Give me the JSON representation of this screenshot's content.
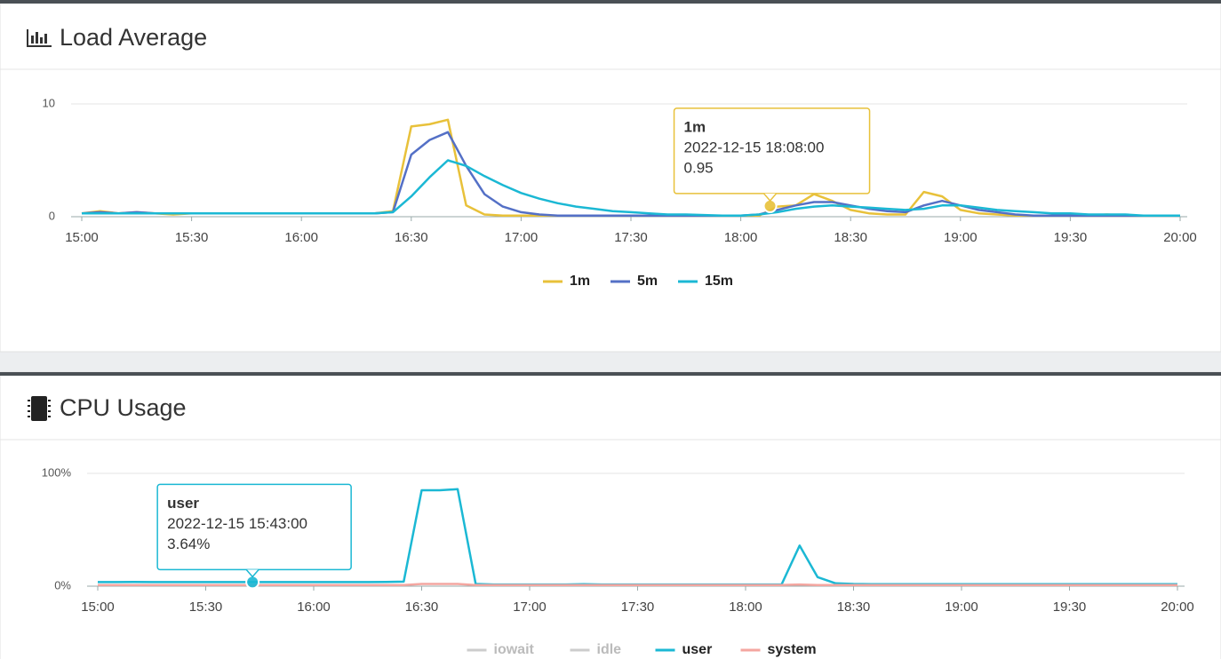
{
  "chart_data": [
    {
      "type": "line",
      "title": "Load Average",
      "x": [
        "15:00",
        "15:05",
        "15:10",
        "15:15",
        "15:20",
        "15:25",
        "15:30",
        "15:35",
        "15:40",
        "15:45",
        "15:50",
        "15:55",
        "16:00",
        "16:05",
        "16:10",
        "16:15",
        "16:20",
        "16:25",
        "16:30",
        "16:35",
        "16:40",
        "16:45",
        "16:50",
        "16:55",
        "17:00",
        "17:05",
        "17:10",
        "17:15",
        "17:20",
        "17:25",
        "17:30",
        "17:35",
        "17:40",
        "17:45",
        "17:50",
        "17:55",
        "18:00",
        "18:05",
        "18:10",
        "18:15",
        "18:20",
        "18:25",
        "18:30",
        "18:35",
        "18:40",
        "18:45",
        "18:50",
        "18:55",
        "19:00",
        "19:05",
        "19:10",
        "19:15",
        "19:20",
        "19:25",
        "19:30",
        "19:35",
        "19:40",
        "19:45",
        "19:50",
        "19:55",
        "20:00"
      ],
      "series": [
        {
          "name": "1m",
          "color": "#e8c13a",
          "values": [
            0.3,
            0.5,
            0.3,
            0.4,
            0.3,
            0.2,
            0.3,
            0.3,
            0.3,
            0.3,
            0.3,
            0.3,
            0.3,
            0.3,
            0.3,
            0.3,
            0.3,
            0.5,
            8.0,
            8.2,
            8.6,
            1.0,
            0.2,
            0.1,
            0.1,
            0.1,
            0.1,
            0.1,
            0.1,
            0.1,
            0.1,
            0.1,
            0.1,
            0.1,
            0.1,
            0.1,
            0.1,
            0.1,
            0.9,
            1.0,
            2.0,
            1.4,
            0.6,
            0.3,
            0.2,
            0.2,
            2.2,
            1.8,
            0.6,
            0.3,
            0.2,
            0.1,
            0.1,
            0.1,
            0.1,
            0.1,
            0.2,
            0.1,
            0.1,
            0.1,
            0.1
          ]
        },
        {
          "name": "5m",
          "color": "#5470c6",
          "values": [
            0.3,
            0.4,
            0.3,
            0.4,
            0.3,
            0.3,
            0.3,
            0.3,
            0.3,
            0.3,
            0.3,
            0.3,
            0.3,
            0.3,
            0.3,
            0.3,
            0.3,
            0.4,
            5.5,
            6.8,
            7.5,
            4.5,
            2.0,
            0.9,
            0.4,
            0.2,
            0.1,
            0.1,
            0.1,
            0.1,
            0.1,
            0.1,
            0.1,
            0.1,
            0.1,
            0.1,
            0.1,
            0.2,
            0.6,
            1.0,
            1.3,
            1.3,
            1.0,
            0.7,
            0.5,
            0.4,
            1.0,
            1.4,
            1.0,
            0.6,
            0.4,
            0.2,
            0.1,
            0.1,
            0.1,
            0.1,
            0.1,
            0.1,
            0.1,
            0.1,
            0.1
          ]
        },
        {
          "name": "15m",
          "color": "#1bb8d4",
          "values": [
            0.3,
            0.3,
            0.3,
            0.3,
            0.3,
            0.3,
            0.3,
            0.3,
            0.3,
            0.3,
            0.3,
            0.3,
            0.3,
            0.3,
            0.3,
            0.3,
            0.3,
            0.4,
            1.8,
            3.5,
            5.0,
            4.5,
            3.6,
            2.8,
            2.1,
            1.6,
            1.2,
            0.9,
            0.7,
            0.5,
            0.4,
            0.3,
            0.2,
            0.2,
            0.15,
            0.1,
            0.1,
            0.2,
            0.4,
            0.7,
            0.9,
            1.0,
            0.9,
            0.8,
            0.7,
            0.6,
            0.7,
            1.0,
            1.0,
            0.8,
            0.6,
            0.5,
            0.4,
            0.3,
            0.3,
            0.2,
            0.2,
            0.2,
            0.1,
            0.1,
            0.1
          ]
        }
      ],
      "xticks": [
        "15:00",
        "15:30",
        "16:00",
        "16:30",
        "17:00",
        "17:30",
        "18:00",
        "18:30",
        "19:00",
        "19:30",
        "20:00"
      ],
      "ylim": [
        0,
        10
      ],
      "yticks": [
        0,
        10
      ],
      "grid": true,
      "legend": "bottom",
      "tooltip": {
        "title": "1m",
        "time": "2022-12-15 18:08:00",
        "value": 0.95
      }
    },
    {
      "type": "line",
      "title": "CPU Usage",
      "x": [
        "15:00",
        "15:05",
        "15:10",
        "15:15",
        "15:20",
        "15:25",
        "15:30",
        "15:35",
        "15:40",
        "15:45",
        "15:50",
        "15:55",
        "16:00",
        "16:05",
        "16:10",
        "16:15",
        "16:20",
        "16:25",
        "16:30",
        "16:35",
        "16:40",
        "16:45",
        "16:50",
        "16:55",
        "17:00",
        "17:05",
        "17:10",
        "17:15",
        "17:20",
        "17:25",
        "17:30",
        "17:35",
        "17:40",
        "17:45",
        "17:50",
        "17:55",
        "18:00",
        "18:05",
        "18:10",
        "18:15",
        "18:20",
        "18:25",
        "18:30",
        "18:35",
        "18:40",
        "18:45",
        "18:50",
        "18:55",
        "19:00",
        "19:05",
        "19:10",
        "19:15",
        "19:20",
        "19:25",
        "19:30",
        "19:35",
        "19:40",
        "19:45",
        "19:50",
        "19:55",
        "20:00"
      ],
      "series": [
        {
          "name": "iowait",
          "color": "#cccccc"
        },
        {
          "name": "idle",
          "color": "#cccccc"
        },
        {
          "name": "user",
          "color": "#1bb8d4",
          "values": [
            3.6,
            3.6,
            3.7,
            3.6,
            3.6,
            3.6,
            3.6,
            3.6,
            3.6,
            3.6,
            3.6,
            3.6,
            3.6,
            3.6,
            3.6,
            3.6,
            3.7,
            4.0,
            85,
            85,
            86,
            2.0,
            1.5,
            1.5,
            1.5,
            1.5,
            1.5,
            1.8,
            1.5,
            1.5,
            1.5,
            1.5,
            1.5,
            1.5,
            1.5,
            1.5,
            1.5,
            1.5,
            1.5,
            36,
            8,
            2.5,
            2.0,
            1.8,
            1.8,
            1.8,
            1.8,
            1.8,
            1.8,
            1.8,
            1.8,
            1.8,
            1.8,
            1.8,
            1.8,
            1.8,
            1.8,
            1.8,
            1.8,
            1.8,
            1.8
          ]
        },
        {
          "name": "system",
          "color": "#f4a6a0",
          "values": [
            1,
            1,
            1,
            1,
            1,
            1,
            1,
            1,
            1,
            1,
            1,
            1,
            1,
            1,
            1,
            1,
            1,
            1,
            2,
            2,
            2,
            1,
            1,
            1,
            1,
            1,
            1,
            1,
            1,
            1,
            1,
            1,
            1,
            1,
            1,
            1,
            1,
            1,
            1,
            1.5,
            1,
            1,
            1,
            1,
            1,
            1,
            1,
            1,
            1,
            1,
            1,
            1,
            1,
            1,
            1,
            1,
            1,
            1,
            1,
            1,
            1
          ]
        }
      ],
      "xticks": [
        "15:00",
        "15:30",
        "16:00",
        "16:30",
        "17:00",
        "17:30",
        "18:00",
        "18:30",
        "19:00",
        "19:30",
        "20:00"
      ],
      "ylim": [
        0,
        100
      ],
      "yticks": [
        {
          "value": 0,
          "label": "0%"
        },
        {
          "value": 100,
          "label": "100%"
        }
      ],
      "grid": true,
      "legend": "bottom",
      "tooltip": {
        "title": "user",
        "time": "2022-12-15 15:43:00",
        "value": 3.64,
        "value_label": "3.64%"
      }
    }
  ]
}
